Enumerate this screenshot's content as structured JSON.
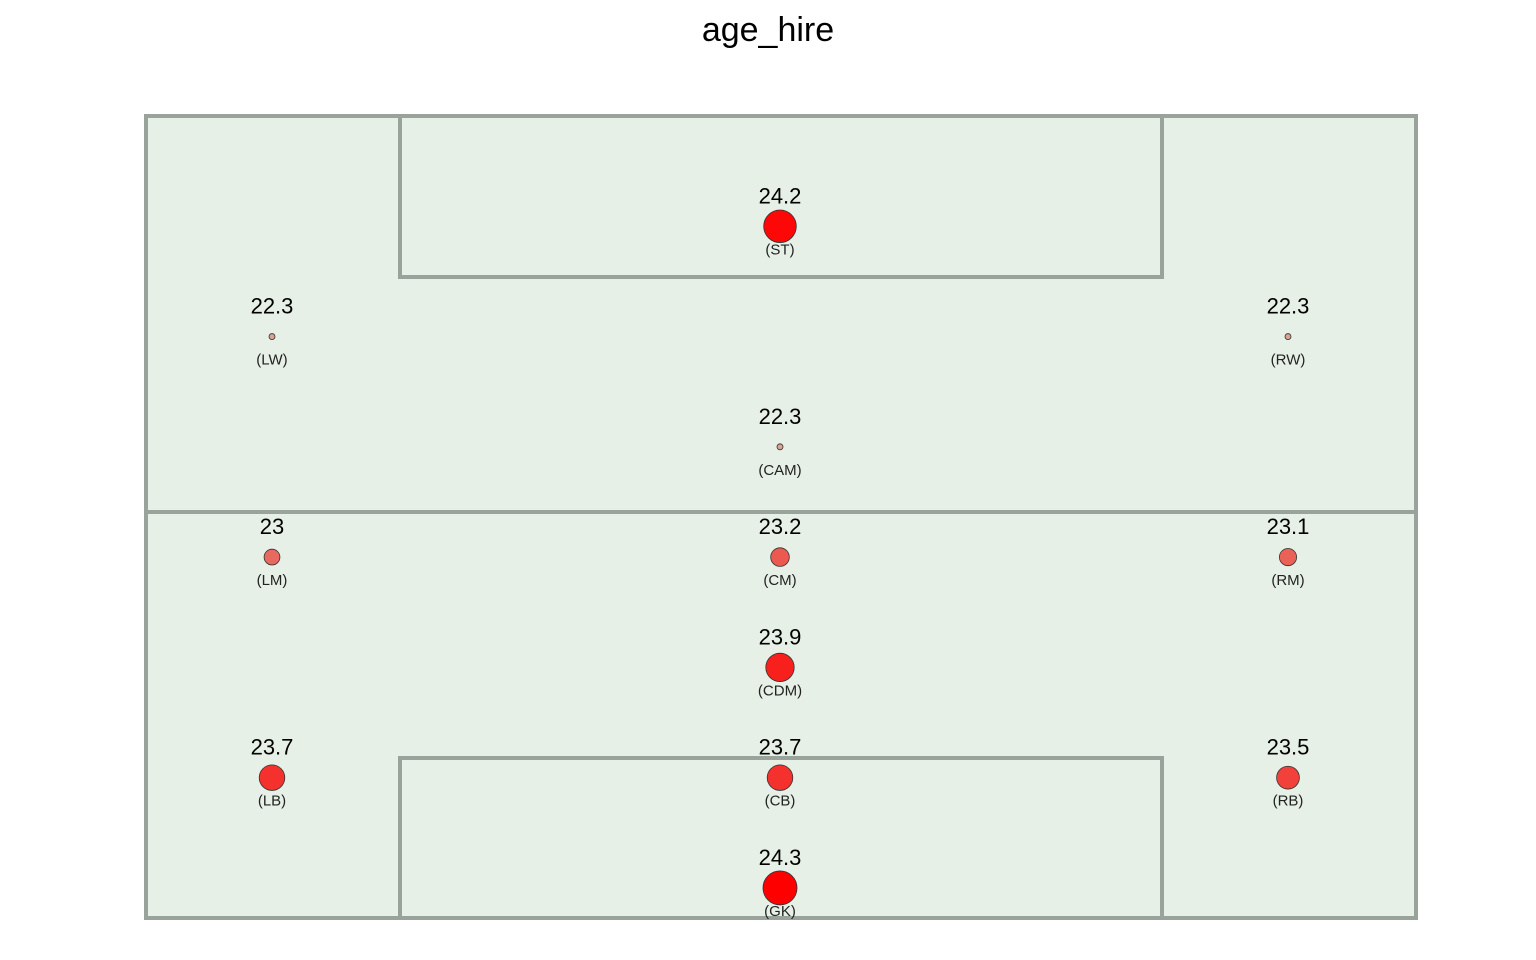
{
  "chart_data": {
    "type": "scatter",
    "title": "age_hire",
    "colors": {
      "pitch_fill": "#e6f0e6",
      "pitch_lines": "#9aa39b",
      "low": "#dca292",
      "high": "#ff0000"
    },
    "positions": [
      {
        "pos": "(ST)",
        "value": 24.2,
        "value_label": "24.2",
        "x": 0.5,
        "y": 0.86
      },
      {
        "pos": "(LW)",
        "value": 22.3,
        "value_label": "22.3",
        "x": 0.1,
        "y": 0.7225
      },
      {
        "pos": "(RW)",
        "value": 22.3,
        "value_label": "22.3",
        "x": 0.9,
        "y": 0.7225
      },
      {
        "pos": "(CAM)",
        "value": 22.3,
        "value_label": "22.3",
        "x": 0.5,
        "y": 0.585
      },
      {
        "pos": "(LM)",
        "value": 23.0,
        "value_label": "23",
        "x": 0.1,
        "y": 0.4475
      },
      {
        "pos": "(CM)",
        "value": 23.2,
        "value_label": "23.2",
        "x": 0.5,
        "y": 0.4475
      },
      {
        "pos": "(RM)",
        "value": 23.1,
        "value_label": "23.1",
        "x": 0.9,
        "y": 0.4475
      },
      {
        "pos": "(CDM)",
        "value": 23.9,
        "value_label": "23.9",
        "x": 0.5,
        "y": 0.31
      },
      {
        "pos": "(LB)",
        "value": 23.7,
        "value_label": "23.7",
        "x": 0.1,
        "y": 0.1725
      },
      {
        "pos": "(CB)",
        "value": 23.7,
        "value_label": "23.7",
        "x": 0.5,
        "y": 0.1725
      },
      {
        "pos": "(RB)",
        "value": 23.5,
        "value_label": "23.5",
        "x": 0.9,
        "y": 0.1725
      },
      {
        "pos": "(GK)",
        "value": 24.3,
        "value_label": "24.3",
        "x": 0.5,
        "y": 0.035
      }
    ]
  }
}
